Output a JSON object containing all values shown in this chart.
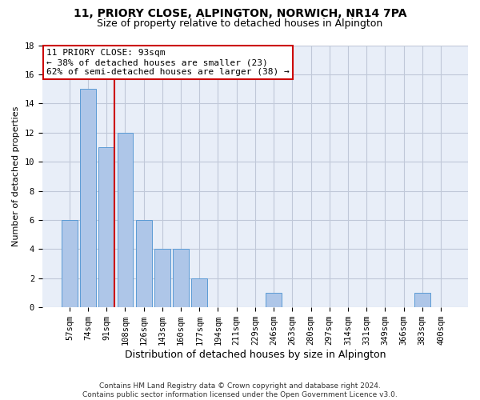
{
  "title_line1": "11, PRIORY CLOSE, ALPINGTON, NORWICH, NR14 7PA",
  "title_line2": "Size of property relative to detached houses in Alpington",
  "xlabel": "Distribution of detached houses by size in Alpington",
  "ylabel": "Number of detached properties",
  "categories": [
    "57sqm",
    "74sqm",
    "91sqm",
    "108sqm",
    "126sqm",
    "143sqm",
    "160sqm",
    "177sqm",
    "194sqm",
    "211sqm",
    "229sqm",
    "246sqm",
    "263sqm",
    "280sqm",
    "297sqm",
    "314sqm",
    "331sqm",
    "349sqm",
    "366sqm",
    "383sqm",
    "400sqm"
  ],
  "values": [
    6,
    15,
    11,
    12,
    6,
    4,
    4,
    2,
    0,
    0,
    0,
    1,
    0,
    0,
    0,
    0,
    0,
    0,
    0,
    1,
    0
  ],
  "bar_color": "#aec6e8",
  "bar_edgecolor": "#5b9bd5",
  "highlight_bar_index": 2,
  "highlight_line_color": "#cc0000",
  "annotation_box_text": "11 PRIORY CLOSE: 93sqm\n← 38% of detached houses are smaller (23)\n62% of semi-detached houses are larger (38) →",
  "annotation_box_color": "#cc0000",
  "background_color": "#e8eef8",
  "grid_color": "#c0c8d8",
  "ylim": [
    0,
    18
  ],
  "yticks": [
    0,
    2,
    4,
    6,
    8,
    10,
    12,
    14,
    16,
    18
  ],
  "footer_text": "Contains HM Land Registry data © Crown copyright and database right 2024.\nContains public sector information licensed under the Open Government Licence v3.0.",
  "title_fontsize": 10,
  "subtitle_fontsize": 9,
  "ylabel_fontsize": 8,
  "xlabel_fontsize": 9,
  "tick_fontsize": 7.5,
  "annotation_fontsize": 8
}
